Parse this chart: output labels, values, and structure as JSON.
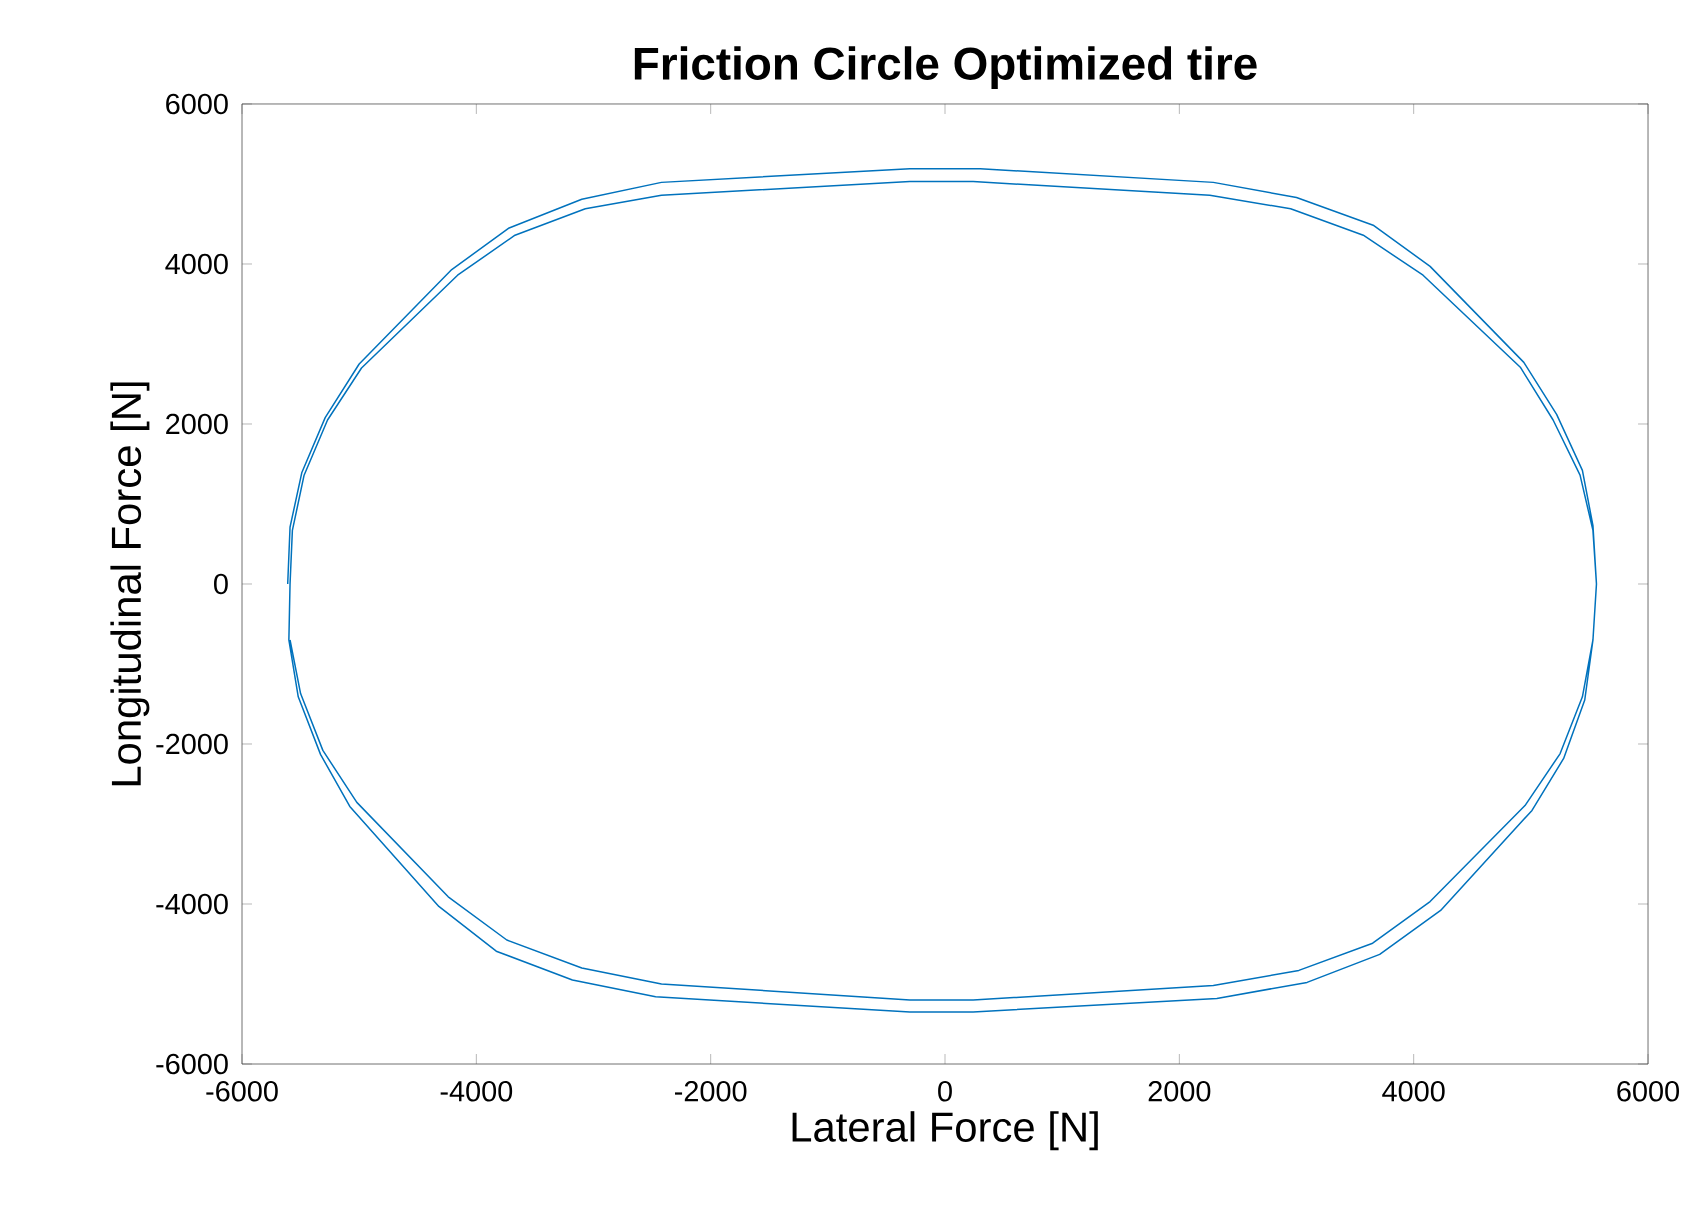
{
  "chart_data": {
    "type": "line",
    "title": "Friction Circle Optimized tire",
    "xlabel": "Lateral Force [N]",
    "ylabel": "Longitudinal Force [N]",
    "xlim": [
      -6000,
      6000
    ],
    "ylim": [
      -6000,
      6000
    ],
    "xticks": [
      -6000,
      -4000,
      -2000,
      0,
      2000,
      4000,
      6000
    ],
    "yticks": [
      -6000,
      -4000,
      -2000,
      0,
      2000,
      4000,
      6000
    ],
    "grid": false,
    "series": [
      {
        "color": "#0072bd",
        "x": [
          -5610,
          -5590,
          -5490,
          -5290,
          -5000,
          -4210,
          -3720,
          -3100,
          -2420,
          -300,
          300,
          2290,
          3000,
          3660,
          4140,
          4940,
          5220,
          5440,
          5530,
          5560,
          5530,
          5460,
          5280,
          5010,
          4230,
          3710,
          3090,
          2320,
          240,
          -300,
          -2470,
          -3180,
          -3830,
          -4320,
          -5080,
          -5330,
          -5520,
          -5600,
          -5590,
          -5570,
          -5470,
          -5270,
          -4980,
          -4160,
          -3670,
          -3070,
          -2420,
          -300,
          240,
          2260,
          2950,
          3570,
          4080,
          4910,
          5190,
          5420,
          5530,
          5560,
          5530,
          5440,
          5250,
          4950,
          4140,
          3650,
          3020,
          2290,
          240,
          -300,
          -2420,
          -3100,
          -3740,
          -4240,
          -5020,
          -5310,
          -5500,
          -5590
        ],
        "values": [
          0,
          710,
          1390,
          2080,
          2750,
          3930,
          4450,
          4810,
          5020,
          5190,
          5190,
          5020,
          4830,
          4480,
          3970,
          2770,
          2120,
          1420,
          730,
          0,
          -700,
          -1450,
          -2180,
          -2830,
          -4080,
          -4630,
          -4980,
          -5180,
          -5350,
          -5350,
          -5160,
          -4950,
          -4590,
          -4030,
          -2780,
          -2130,
          -1410,
          -700,
          0,
          670,
          1360,
          2050,
          2700,
          3860,
          4360,
          4690,
          4860,
          5030,
          5030,
          4860,
          4690,
          4360,
          3860,
          2710,
          2050,
          1360,
          670,
          0,
          -700,
          -1410,
          -2120,
          -2770,
          -3970,
          -4490,
          -4830,
          -5020,
          -5200,
          -5200,
          -5000,
          -4800,
          -4450,
          -3910,
          -2730,
          -2080,
          -1370,
          -700
        ]
      }
    ]
  }
}
